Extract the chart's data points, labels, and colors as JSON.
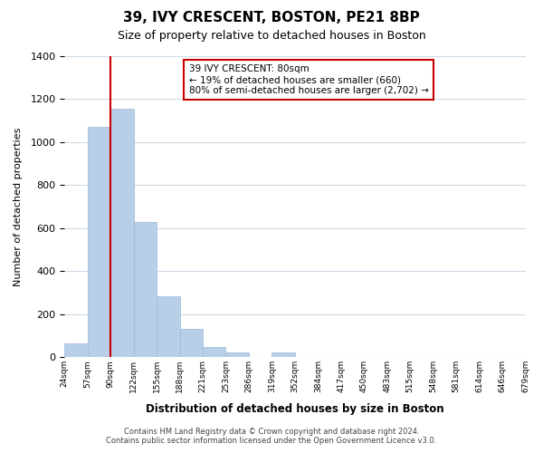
{
  "title": "39, IVY CRESCENT, BOSTON, PE21 8BP",
  "subtitle": "Size of property relative to detached houses in Boston",
  "xlabel": "Distribution of detached houses by size in Boston",
  "ylabel": "Number of detached properties",
  "bin_labels": [
    "24sqm",
    "57sqm",
    "90sqm",
    "122sqm",
    "155sqm",
    "188sqm",
    "221sqm",
    "253sqm",
    "286sqm",
    "319sqm",
    "352sqm",
    "384sqm",
    "417sqm",
    "450sqm",
    "483sqm",
    "515sqm",
    "548sqm",
    "581sqm",
    "614sqm",
    "646sqm",
    "679sqm"
  ],
  "bar_values": [
    65,
    1070,
    1155,
    630,
    285,
    130,
    48,
    20,
    0,
    20,
    0,
    0,
    0,
    0,
    0,
    0,
    0,
    0,
    0,
    0
  ],
  "bar_color": "#b8cfe8",
  "bar_edge_color": "#a0b8d8",
  "ylim": [
    0,
    1400
  ],
  "yticks": [
    0,
    200,
    400,
    600,
    800,
    1000,
    1200,
    1400
  ],
  "annotation_title": "39 IVY CRESCENT: 80sqm",
  "annotation_line1": "← 19% of detached houses are smaller (660)",
  "annotation_line2": "80% of semi-detached houses are larger (2,702) →",
  "annotation_box_color": "#ffffff",
  "annotation_box_edge": "#cc0000",
  "footer1": "Contains HM Land Registry data © Crown copyright and database right 2024.",
  "footer2": "Contains public sector information licensed under the Open Government Licence v3.0.",
  "red_line_x": 2.0,
  "red_line_color": "#cc0000",
  "background_color": "#ffffff",
  "grid_color": "#d0dce8"
}
